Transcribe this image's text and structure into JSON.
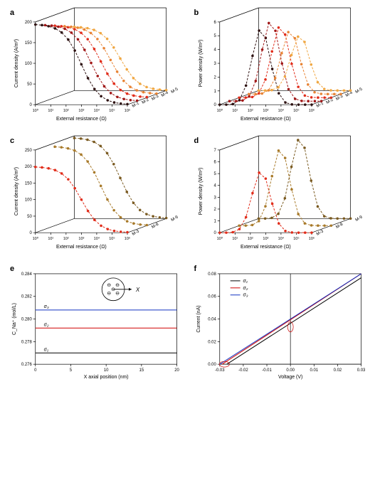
{
  "panels": {
    "a": {
      "label": "a",
      "ylabel": "Current density (A/m²)",
      "xlabel": "External resistance (Ω)",
      "zlabel_prefix": "M-",
      "yticks": [
        0,
        50,
        100,
        150,
        200
      ],
      "xticks": [
        "10⁰",
        "10¹",
        "10²",
        "10³",
        "10⁴",
        "10⁵",
        "10⁶"
      ],
      "series": [
        {
          "name": "M-1",
          "color": "#2d1010"
        },
        {
          "name": "M-2",
          "color": "#a01616"
        },
        {
          "name": "M-3",
          "color": "#e12c1a"
        },
        {
          "name": "M-4",
          "color": "#e88334"
        },
        {
          "name": "M-5",
          "color": "#f0a742"
        }
      ],
      "heights": [
        195,
        185,
        175,
        165,
        155
      ]
    },
    "b": {
      "label": "b",
      "ylabel": "Power density (W/m²)",
      "xlabel": "External resistance (Ω)",
      "zlabel_prefix": "M-",
      "yticks": [
        0,
        1,
        2,
        3,
        4,
        5,
        6
      ],
      "xticks": [
        "10⁰",
        "10¹",
        "10²",
        "10³",
        "10⁴",
        "10⁵",
        "10⁶"
      ],
      "series": [
        {
          "name": "M-1",
          "color": "#2d1010"
        },
        {
          "name": "M-2",
          "color": "#a01616"
        },
        {
          "name": "M-3",
          "color": "#e12c1a"
        },
        {
          "name": "M-4",
          "color": "#e88334"
        },
        {
          "name": "M-5",
          "color": "#f0a742"
        }
      ],
      "heights": [
        5.5,
        5.8,
        5.2,
        4.6,
        4.0
      ]
    },
    "c": {
      "label": "c",
      "ylabel": "Current density (A/m²)",
      "xlabel": "External resistance (Ω)",
      "zlabel_prefix": "M-",
      "yticks": [
        0,
        50,
        100,
        150,
        200,
        250
      ],
      "xticks": [
        "10⁰",
        "10¹",
        "10²",
        "10³",
        "10⁴",
        "10⁵",
        "10⁶"
      ],
      "series": [
        {
          "name": "M-3",
          "color": "#e12c1a"
        },
        {
          "name": "M-8",
          "color": "#a87a2a"
        },
        {
          "name": "M-9",
          "color": "#7a5a20"
        }
      ],
      "heights": [
        200,
        240,
        245
      ]
    },
    "d": {
      "label": "d",
      "ylabel": "Power density (W/m²)",
      "xlabel": "External resistance (Ω)",
      "zlabel_prefix": "M-",
      "yticks": [
        0,
        1,
        2,
        3,
        4,
        5,
        6,
        7
      ],
      "xticks": [
        "10⁰",
        "10¹",
        "10²",
        "10³",
        "10⁴",
        "10⁵",
        "10⁶"
      ],
      "series": [
        {
          "name": "M-3",
          "color": "#e12c1a"
        },
        {
          "name": "M-8",
          "color": "#a87a2a"
        },
        {
          "name": "M-9",
          "color": "#7a5a20"
        }
      ],
      "heights": [
        5.2,
        6.5,
        6.8
      ]
    },
    "e": {
      "label": "e",
      "ylabel": "C_Na⁺ (mol/L)",
      "xlabel": "X axial position (nm)",
      "xticks": [
        0,
        5,
        10,
        15,
        20
      ],
      "yticks": [
        0.276,
        0.278,
        0.28,
        0.282,
        0.284
      ],
      "lines": [
        {
          "name": "σ₁",
          "color": "#000000",
          "y": 0.277
        },
        {
          "name": "σ₂",
          "color": "#d00000",
          "y": 0.2792
        },
        {
          "name": "σ₃",
          "color": "#1030c0",
          "y": 0.2808
        }
      ],
      "inset_label": "X",
      "inset_minus": "⊖"
    },
    "f": {
      "label": "f",
      "ylabel": "Current (nA)",
      "xlabel": "Voltage (V)",
      "xticks": [
        -0.03,
        -0.02,
        -0.01,
        0.0,
        0.01,
        0.02,
        0.03
      ],
      "yticks": [
        0.0,
        0.02,
        0.04,
        0.06,
        0.08
      ],
      "legend": [
        {
          "name": "σ₁",
          "color": "#000000",
          "slope": 1.0,
          "xint": -0.027
        },
        {
          "name": "σ₂",
          "color": "#d00000",
          "slope": 1.1,
          "xint": -0.029
        },
        {
          "name": "σ₃",
          "color": "#1030c0",
          "slope": 1.15,
          "xint": -0.03
        }
      ]
    }
  },
  "fontsize": {
    "axis": 7,
    "tick": 6,
    "panel": 11
  }
}
